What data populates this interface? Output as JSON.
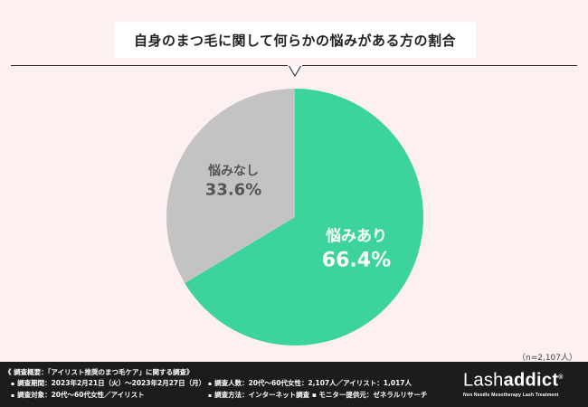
{
  "header": {
    "title": "自身のまつ毛に関して何らかの悩みがある方の割合"
  },
  "chart_data": {
    "type": "pie",
    "categories": [
      "悩みあり",
      "悩みなし"
    ],
    "values": [
      66.4,
      33.6
    ],
    "value_labels": [
      "66.4%",
      "33.6%"
    ],
    "colors": [
      "#3dd49b",
      "#c3c3c3"
    ],
    "legend": "none"
  },
  "sample_note": "（n=2,107人）",
  "footer": {
    "survey_title": "《 調査概要：「アイリスト推奨のまつ毛ケア」に関する調査》",
    "lines": [
      "調査期間：2023年2月21日（火）〜2023年2月27日（月）",
      "調査対象：20代〜60代女性／アイリスト",
      "調査人数：20代〜60代女性：2,107人／アイリスト：1,017人",
      "調査方法：インターネット調査 ▪ モニター提供元：ゼネラルリサーチ"
    ],
    "bullet": "▪",
    "brand": {
      "name_light": "Lash",
      "name_bold": "addict",
      "reg": "®",
      "tagline": "Non Needle Mesotherapy Lash Treatment"
    }
  }
}
